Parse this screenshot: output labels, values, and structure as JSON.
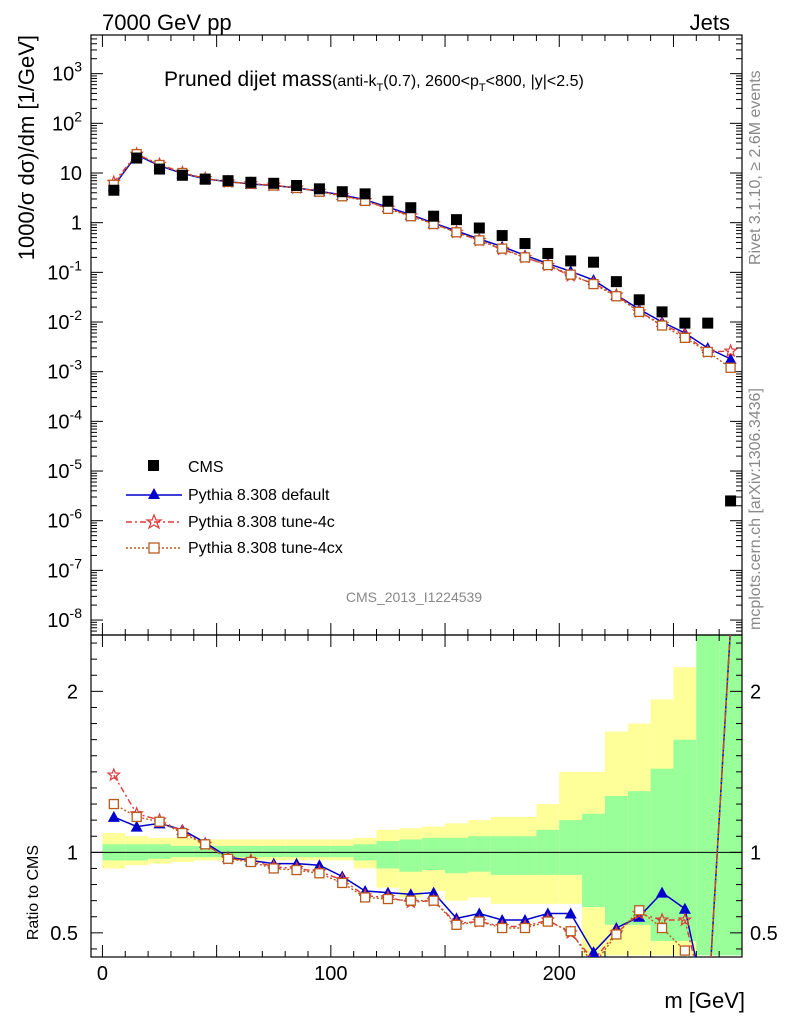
{
  "header": {
    "left": "7000 GeV pp",
    "right": "Jets"
  },
  "side": {
    "rivet": "Rivet 3.1.10, ≥ 2.6M events",
    "mcplots": "mcplots.cern.ch [arXiv:1306.3436]"
  },
  "watermark": "CMS_2013_I1224539",
  "axes": {
    "ylabel_top": "1000/σ dσ)/dm [1/GeV]",
    "ylabel_bottom": "Ratio to CMS",
    "xlabel": "m [GeV]"
  },
  "title_main": "Pruned dijet mass",
  "title_sub": "(anti-k",
  "title_sub_T": "T",
  "title_sub_mid": "(0.7), 2600<p",
  "title_sub_T2": "T",
  "title_sub_end": "<800, |y|<2.5)",
  "legend": [
    {
      "label": "CMS",
      "color": "#000000"
    },
    {
      "label": "Pythia 8.308 default",
      "color": "#0000cc"
    },
    {
      "label": "Pythia 8.308 tune-4c",
      "color": "#e03a3a"
    },
    {
      "label": "Pythia 8.308 tune-4cx",
      "color": "#b85c1e"
    }
  ],
  "ticks": {
    "x": [
      "0",
      "100",
      "200"
    ],
    "y_top": [
      "10",
      "10",
      "10",
      "10",
      "1",
      "10",
      "10",
      "10",
      "10",
      "10",
      "10",
      "10",
      "10"
    ],
    "y_top_exp": [
      "-8",
      "-7",
      "-6",
      "-5",
      "-4",
      "-3",
      "-2",
      "-1",
      "",
      "",
      "",
      "2",
      "3"
    ],
    "y_bottom": [
      "0.5",
      "1",
      "2"
    ]
  },
  "chart_data": {
    "type": "scatter",
    "x": [
      5,
      15,
      25,
      35,
      45,
      55,
      65,
      75,
      85,
      95,
      105,
      115,
      125,
      135,
      145,
      155,
      165,
      175,
      185,
      195,
      205,
      215,
      225,
      235,
      245,
      255,
      265,
      275
    ],
    "xlim": [
      -5,
      280
    ],
    "ylim_top": [
      5e-09,
      6000
    ],
    "ylim_ratio": [
      0.35,
      2.35
    ],
    "yscale": "log",
    "series": [
      {
        "name": "CMS",
        "values": [
          4.5,
          20,
          12,
          9,
          7.5,
          7,
          6.5,
          6.2,
          5.6,
          4.8,
          4.2,
          3.8,
          2.7,
          2.0,
          1.35,
          1.15,
          0.78,
          0.55,
          0.38,
          0.24,
          0.17,
          0.16,
          0.065,
          0.028,
          0.016,
          0.0095,
          0.0095,
          2.5e-06
        ]
      },
      {
        "name": "Pythia 8.308 default",
        "values": [
          5.5,
          23,
          14,
          9.8,
          7.6,
          6.7,
          6.0,
          5.6,
          5.0,
          4.3,
          3.6,
          2.9,
          2.05,
          1.45,
          0.98,
          0.68,
          0.47,
          0.33,
          0.22,
          0.15,
          0.105,
          0.07,
          0.035,
          0.018,
          0.01,
          0.006,
          0.003,
          0.0018
        ]
      },
      {
        "name": "Pythia 8.308 tune-4c",
        "values": [
          6.5,
          24,
          15,
          10.2,
          7.8,
          6.6,
          6.1,
          5.7,
          5.0,
          4.3,
          3.5,
          2.8,
          1.95,
          1.38,
          0.95,
          0.64,
          0.44,
          0.29,
          0.2,
          0.138,
          0.085,
          0.06,
          0.035,
          0.016,
          0.009,
          0.0055,
          0.0025,
          0.0026
        ]
      },
      {
        "name": "Pythia 8.308 tune-4cx",
        "values": [
          5.8,
          24,
          14.5,
          10,
          7.7,
          6.6,
          6.1,
          5.6,
          5.0,
          4.2,
          3.4,
          2.75,
          1.9,
          1.35,
          0.94,
          0.64,
          0.44,
          0.3,
          0.2,
          0.14,
          0.09,
          0.058,
          0.033,
          0.016,
          0.0085,
          0.0048,
          0.0025,
          0.0012
        ]
      }
    ],
    "ratio": [
      {
        "name": "Pythia 8.308 default",
        "values": [
          1.22,
          1.16,
          1.18,
          1.14,
          1.06,
          0.97,
          0.95,
          0.93,
          0.93,
          0.92,
          0.85,
          0.76,
          0.75,
          0.74,
          0.75,
          0.59,
          0.62,
          0.58,
          0.58,
          0.62,
          0.62,
          0.38,
          0.53,
          0.6,
          0.75,
          0.65,
          0.0,
          2.4
        ]
      },
      {
        "name": "Pythia 8.308 tune-4c",
        "values": [
          1.48,
          1.24,
          1.2,
          1.13,
          1.05,
          0.96,
          0.95,
          0.91,
          0.9,
          0.88,
          0.83,
          0.73,
          0.72,
          0.69,
          0.7,
          0.56,
          0.57,
          0.54,
          0.54,
          0.58,
          0.5,
          0.33,
          0.5,
          0.62,
          0.58,
          0.58,
          0.0,
          2.4
        ]
      },
      {
        "name": "Pythia 8.308 tune-4cx",
        "values": [
          1.3,
          1.22,
          1.19,
          1.12,
          1.05,
          0.96,
          0.94,
          0.9,
          0.89,
          0.87,
          0.81,
          0.72,
          0.71,
          0.7,
          0.7,
          0.55,
          0.57,
          0.53,
          0.53,
          0.57,
          0.51,
          0.3,
          0.49,
          0.64,
          0.53,
          0.39,
          0.0,
          2.4
        ]
      }
    ],
    "bands": {
      "x_edges": [
        0,
        10,
        20,
        30,
        40,
        50,
        60,
        70,
        80,
        90,
        100,
        110,
        120,
        130,
        140,
        150,
        160,
        170,
        180,
        190,
        200,
        210,
        220,
        230,
        240,
        250,
        260,
        270,
        280
      ],
      "yellow_lo": [
        0.9,
        0.92,
        0.93,
        0.94,
        0.95,
        0.95,
        0.95,
        0.95,
        0.95,
        0.95,
        0.95,
        0.9,
        0.78,
        0.72,
        0.76,
        0.7,
        0.72,
        0.68,
        0.68,
        0.68,
        0.68,
        0.36,
        0.36,
        0.36,
        0.36,
        0.36,
        0.36,
        0.36
      ],
      "yellow_hi": [
        1.12,
        1.1,
        1.09,
        1.09,
        1.08,
        1.08,
        1.08,
        1.08,
        1.08,
        1.08,
        1.08,
        1.09,
        1.14,
        1.15,
        1.16,
        1.18,
        1.2,
        1.22,
        1.22,
        1.3,
        1.5,
        1.5,
        1.75,
        1.8,
        1.95,
        2.15,
        2.35,
        2.35
      ],
      "green_lo": [
        0.95,
        0.95,
        0.96,
        0.97,
        0.97,
        0.97,
        0.97,
        0.97,
        0.97,
        0.97,
        0.97,
        0.95,
        0.9,
        0.88,
        0.89,
        0.87,
        0.88,
        0.86,
        0.86,
        0.86,
        0.86,
        0.66,
        0.55,
        0.55,
        0.45,
        0.45,
        0.36,
        0.36
      ],
      "green_hi": [
        1.05,
        1.05,
        1.05,
        1.04,
        1.04,
        1.04,
        1.04,
        1.04,
        1.04,
        1.04,
        1.04,
        1.05,
        1.07,
        1.08,
        1.09,
        1.09,
        1.1,
        1.1,
        1.1,
        1.14,
        1.2,
        1.24,
        1.35,
        1.38,
        1.52,
        1.7,
        2.35,
        2.35
      ]
    }
  }
}
